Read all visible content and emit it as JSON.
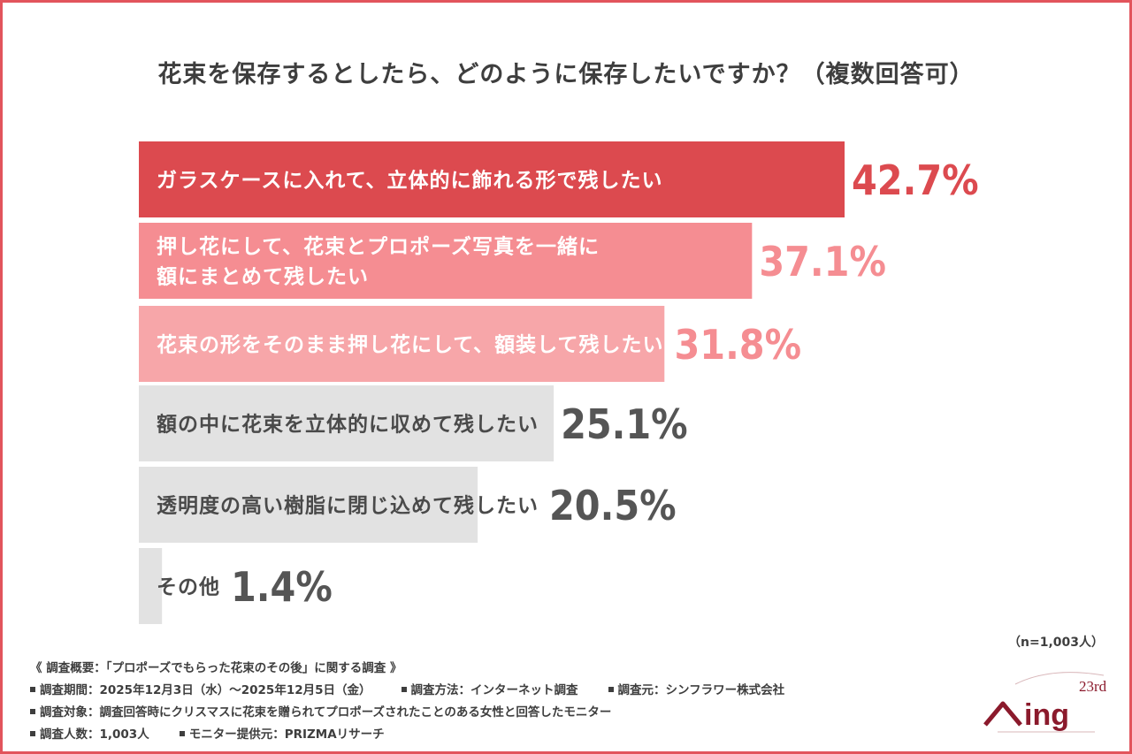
{
  "title": "花束を保存するとしたら、どのように保存したいですか？（複数回答可）",
  "sample_size": "（n=1,003人）",
  "colors": {
    "top": "#dc4a4f",
    "second": "#f58d92",
    "third": "#f7a6a9",
    "grey": "#e2e2e2",
    "value_top": "#dc4a4f",
    "value_second": "#f58d92",
    "value_grey": "#555555",
    "label_white": "#ffffff",
    "label_grey": "#4a4a4a"
  },
  "chart_data": {
    "type": "bar",
    "orientation": "horizontal",
    "categories": [
      "ガラスケースに入れて、立体的に飾れる形で残したい",
      "押し花にして、花束とプロポーズ写真を一緒に額にまとめて残したい",
      "花束の形をそのまま押し花にして、額装して残したい",
      "額の中に花束を立体的に収めて残したい",
      "透明度の高い樹脂に閉じ込めて残したい",
      "その他"
    ],
    "category_lines": [
      [
        "ガラスケースに入れて、立体的に飾れる形で残したい"
      ],
      [
        "押し花にして、花束とプロポーズ写真を一緒に",
        "額にまとめて残したい"
      ],
      [
        "花束の形をそのまま押し花にして、額装して残したい"
      ],
      [
        "額の中に花束を立体的に収めて残したい"
      ],
      [
        "透明度の高い樹脂に閉じ込めて残したい"
      ],
      [
        "その他"
      ]
    ],
    "values": [
      42.7,
      37.1,
      31.8,
      25.1,
      20.5,
      1.4
    ],
    "value_labels": [
      "42.7%",
      "37.1%",
      "31.8%",
      "25.1%",
      "20.5%",
      "1.4%"
    ],
    "unit": "%"
  },
  "footer": {
    "summary": "《 調査概要：「プロポーズでもらった花束のその後」に関する調査 》",
    "period": "調査期間：2025年12月3日（水）～2025年12月5日（金）",
    "method": "調査方法：インターネット調査",
    "source": "調査元：シンフラワー株式会社",
    "target": "調査対象：調査回答時にクリスマスに花束を贈られてプロポーズされたことのある女性と回答したモニター",
    "count": "調査人数：1,003人",
    "provider": "モニター提供元：PRIZMAリサーチ"
  },
  "logo": {
    "superscript": "23rd",
    "wordmark": "Ning"
  }
}
